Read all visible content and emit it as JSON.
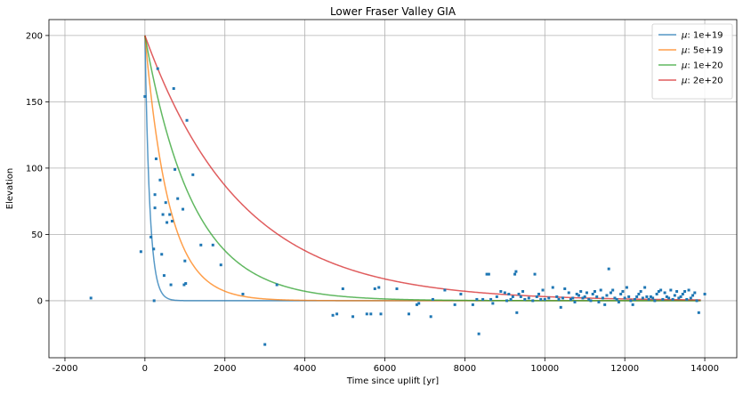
{
  "chart_data": {
    "type": "line",
    "title": "Lower Fraser Valley GIA",
    "xlabel": "Time since uplift [yr]",
    "ylabel": "Elevation",
    "xlim": [
      -2400,
      14800
    ],
    "ylim": [
      -43,
      212
    ],
    "xticks": [
      -2000,
      0,
      2000,
      4000,
      6000,
      8000,
      10000,
      12000,
      14000
    ],
    "yticks": [
      0,
      50,
      100,
      150,
      200
    ],
    "grid": true,
    "legend_position": "top-right",
    "series": [
      {
        "name": "μ: 1e+19",
        "prefix": "μ",
        "suffix": ": 1e+19",
        "color": "#1f77b4",
        "start": 200,
        "tau": 120
      },
      {
        "name": "μ: 5e+19",
        "prefix": "μ",
        "suffix": ": 5e+19",
        "color": "#ff7f0e",
        "start": 200,
        "tau": 600
      },
      {
        "name": "μ: 1e+20",
        "prefix": "μ",
        "suffix": ": 1e+20",
        "color": "#2ca02c",
        "start": 200,
        "tau": 1200
      },
      {
        "name": "μ: 2e+20",
        "prefix": "μ",
        "suffix": ": 2e+20",
        "color": "#d62728",
        "start": 200,
        "tau": 2400
      }
    ],
    "scatter": {
      "color": "#1f77b4",
      "points": [
        [
          -1350,
          2
        ],
        [
          -100,
          37
        ],
        [
          0,
          154
        ],
        [
          150,
          48
        ],
        [
          220,
          39
        ],
        [
          230,
          0
        ],
        [
          250,
          70
        ],
        [
          250,
          80
        ],
        [
          280,
          107
        ],
        [
          320,
          175
        ],
        [
          380,
          91
        ],
        [
          420,
          35
        ],
        [
          450,
          65
        ],
        [
          480,
          19
        ],
        [
          520,
          74
        ],
        [
          550,
          59
        ],
        [
          620,
          65
        ],
        [
          650,
          12
        ],
        [
          680,
          60
        ],
        [
          720,
          160
        ],
        [
          750,
          99
        ],
        [
          820,
          77
        ],
        [
          950,
          69
        ],
        [
          980,
          12
        ],
        [
          1000,
          30
        ],
        [
          1020,
          13
        ],
        [
          1050,
          136
        ],
        [
          1200,
          95
        ],
        [
          1400,
          42
        ],
        [
          1700,
          42
        ],
        [
          1900,
          27
        ],
        [
          2450,
          5
        ],
        [
          3000,
          -33
        ],
        [
          3300,
          12
        ],
        [
          4700,
          -11
        ],
        [
          4800,
          -10
        ],
        [
          4950,
          9
        ],
        [
          5200,
          -12
        ],
        [
          5550,
          -10
        ],
        [
          5650,
          -10
        ],
        [
          5750,
          9
        ],
        [
          5850,
          10
        ],
        [
          5900,
          -10
        ],
        [
          6300,
          9
        ],
        [
          6600,
          -10
        ],
        [
          6800,
          -3
        ],
        [
          6850,
          -2
        ],
        [
          7150,
          -12
        ],
        [
          7200,
          1
        ],
        [
          7500,
          8
        ],
        [
          7750,
          -3
        ],
        [
          7900,
          5
        ],
        [
          8200,
          -3
        ],
        [
          8300,
          1
        ],
        [
          8350,
          -25
        ],
        [
          8450,
          1
        ],
        [
          8550,
          20
        ],
        [
          8600,
          20
        ],
        [
          8650,
          1
        ],
        [
          8700,
          -2
        ],
        [
          8800,
          3
        ],
        [
          8900,
          7
        ],
        [
          9000,
          6
        ],
        [
          9050,
          0
        ],
        [
          9100,
          5
        ],
        [
          9150,
          1
        ],
        [
          9200,
          3
        ],
        [
          9250,
          20
        ],
        [
          9280,
          22
        ],
        [
          9300,
          -9
        ],
        [
          9350,
          5
        ],
        [
          9400,
          3
        ],
        [
          9450,
          7
        ],
        [
          9500,
          1
        ],
        [
          9600,
          2
        ],
        [
          9700,
          0
        ],
        [
          9750,
          20
        ],
        [
          9800,
          3
        ],
        [
          9850,
          5
        ],
        [
          9900,
          1
        ],
        [
          9950,
          8
        ],
        [
          10000,
          1
        ],
        [
          10100,
          2
        ],
        [
          10200,
          10
        ],
        [
          10300,
          3
        ],
        [
          10350,
          1
        ],
        [
          10400,
          -5
        ],
        [
          10450,
          2
        ],
        [
          10500,
          9
        ],
        [
          10600,
          6
        ],
        [
          10650,
          1
        ],
        [
          10700,
          2
        ],
        [
          10750,
          -1
        ],
        [
          10800,
          5
        ],
        [
          10850,
          4
        ],
        [
          10900,
          7
        ],
        [
          10950,
          2
        ],
        [
          11000,
          3
        ],
        [
          11050,
          6
        ],
        [
          11100,
          1
        ],
        [
          11150,
          0
        ],
        [
          11200,
          5
        ],
        [
          11250,
          7
        ],
        [
          11300,
          3
        ],
        [
          11350,
          -1
        ],
        [
          11400,
          8
        ],
        [
          11450,
          2
        ],
        [
          11500,
          -3
        ],
        [
          11550,
          4
        ],
        [
          11600,
          24
        ],
        [
          11650,
          6
        ],
        [
          11700,
          8
        ],
        [
          11750,
          2
        ],
        [
          11800,
          1
        ],
        [
          11850,
          -1
        ],
        [
          11900,
          5
        ],
        [
          11950,
          7
        ],
        [
          12000,
          2
        ],
        [
          12050,
          10
        ],
        [
          12100,
          3
        ],
        [
          12150,
          0
        ],
        [
          12200,
          -3
        ],
        [
          12250,
          1
        ],
        [
          12300,
          3
        ],
        [
          12350,
          5
        ],
        [
          12400,
          7
        ],
        [
          12450,
          2
        ],
        [
          12500,
          10
        ],
        [
          12550,
          3
        ],
        [
          12600,
          1
        ],
        [
          12650,
          3
        ],
        [
          12700,
          2
        ],
        [
          12750,
          0
        ],
        [
          12800,
          5
        ],
        [
          12850,
          7
        ],
        [
          12900,
          8
        ],
        [
          12950,
          1
        ],
        [
          13000,
          6
        ],
        [
          13050,
          3
        ],
        [
          13100,
          2
        ],
        [
          13150,
          8
        ],
        [
          13200,
          1
        ],
        [
          13250,
          4
        ],
        [
          13300,
          7
        ],
        [
          13350,
          2
        ],
        [
          13400,
          3
        ],
        [
          13450,
          5
        ],
        [
          13500,
          7
        ],
        [
          13550,
          1
        ],
        [
          13600,
          8
        ],
        [
          13650,
          2
        ],
        [
          13700,
          4
        ],
        [
          13750,
          6
        ],
        [
          13800,
          0
        ],
        [
          13850,
          -9
        ],
        [
          14000,
          5
        ]
      ]
    }
  }
}
